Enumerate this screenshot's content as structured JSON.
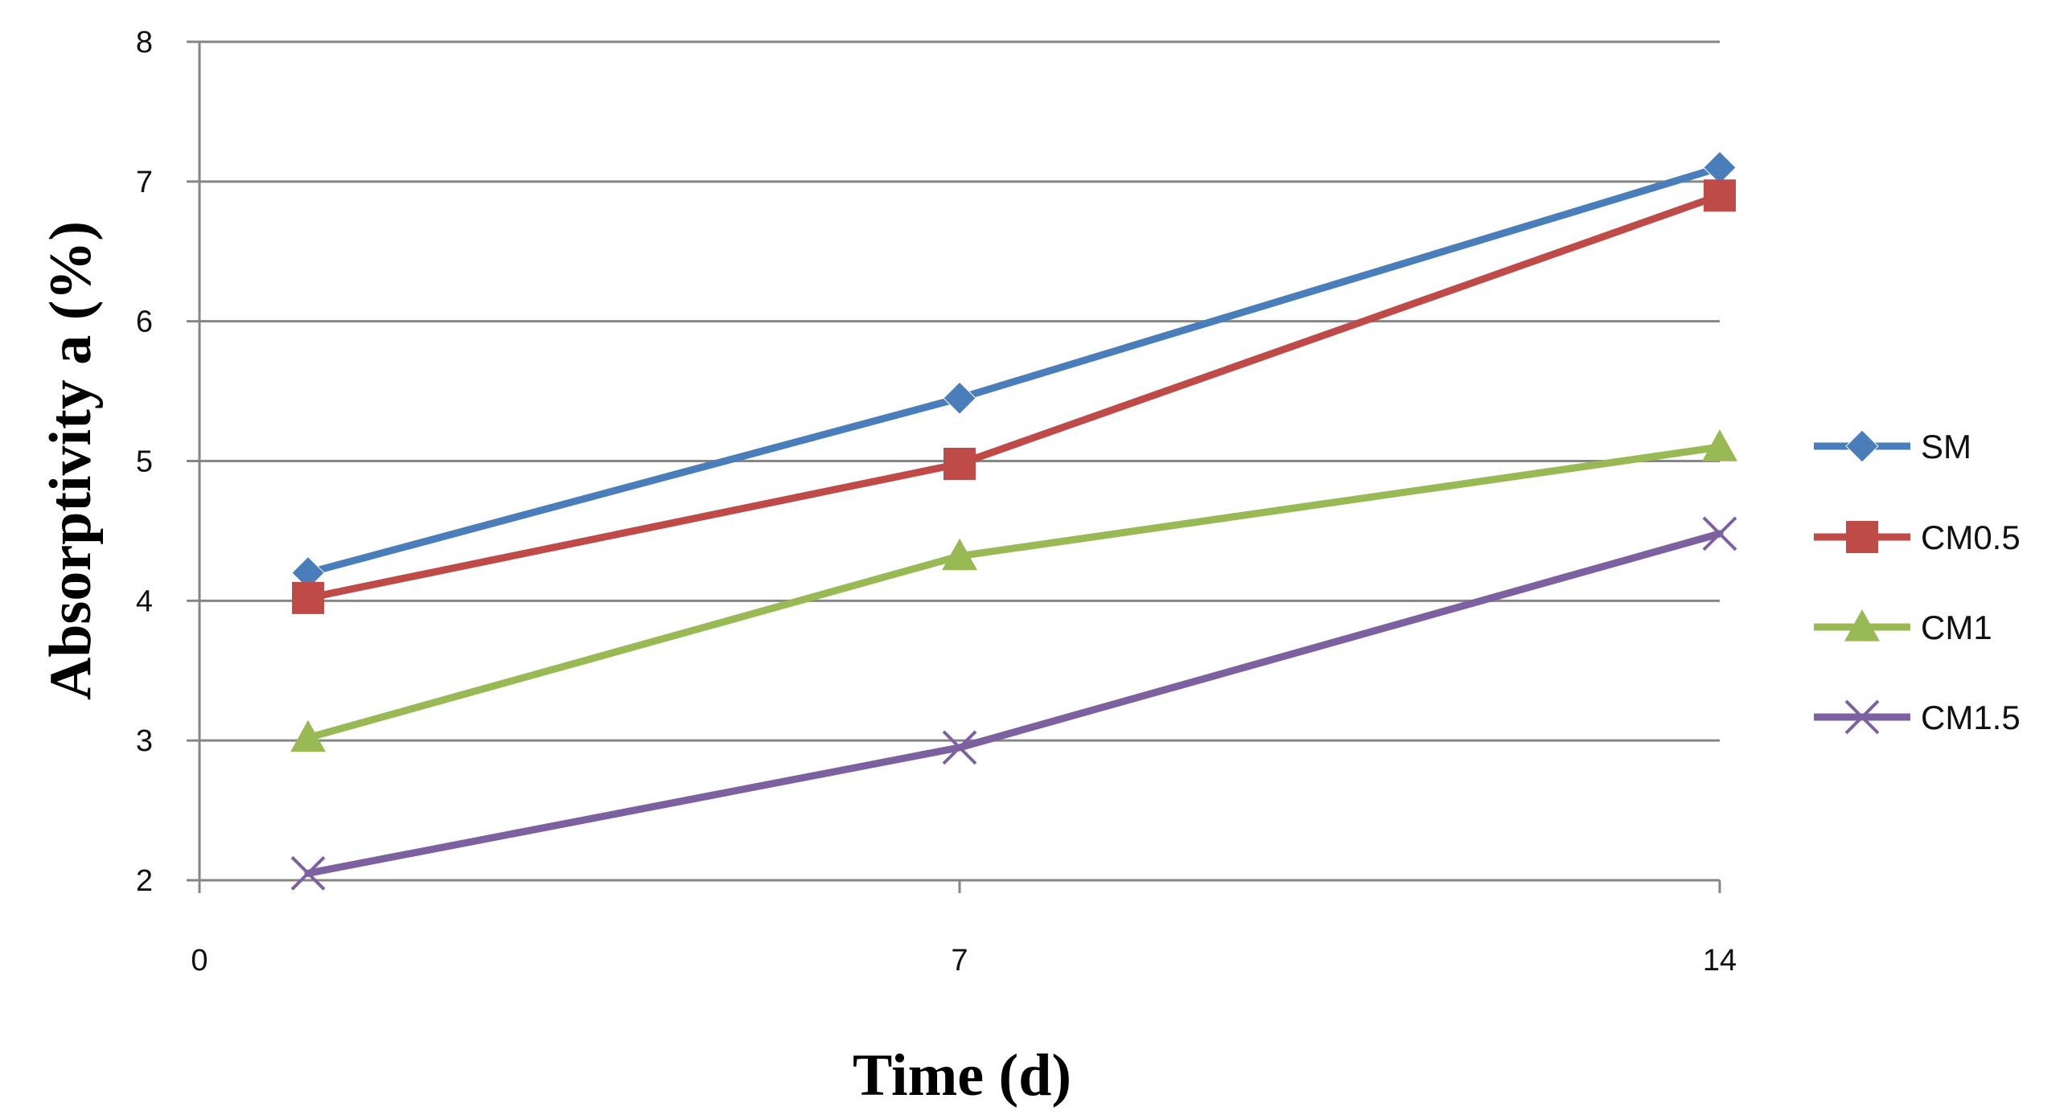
{
  "chart_data": {
    "type": "line",
    "title": "",
    "xlabel": "Time (d)",
    "ylabel": "Absorptivity a (%)",
    "xlim": [
      0,
      14
    ],
    "ylim": [
      2,
      8
    ],
    "x_ticks": [
      "0",
      "7",
      "14"
    ],
    "y_ticks": [
      "2",
      "3",
      "4",
      "5",
      "6",
      "7",
      "8"
    ],
    "grid": "horizontal",
    "legend_position": "right",
    "x": [
      1,
      7,
      14
    ],
    "series": [
      {
        "name": "SM",
        "values": [
          4.2,
          5.45,
          7.1
        ],
        "color": "#4a7ebb",
        "marker": "diamond"
      },
      {
        "name": "CM0.5",
        "values": [
          4.02,
          4.98,
          6.9
        ],
        "color": "#be4b48",
        "marker": "square"
      },
      {
        "name": "CM1",
        "values": [
          3.02,
          4.32,
          5.1
        ],
        "color": "#98b954",
        "marker": "triangle"
      },
      {
        "name": "CM1.5",
        "values": [
          2.05,
          2.95,
          4.48
        ],
        "color": "#7d60a0",
        "marker": "x"
      }
    ]
  }
}
